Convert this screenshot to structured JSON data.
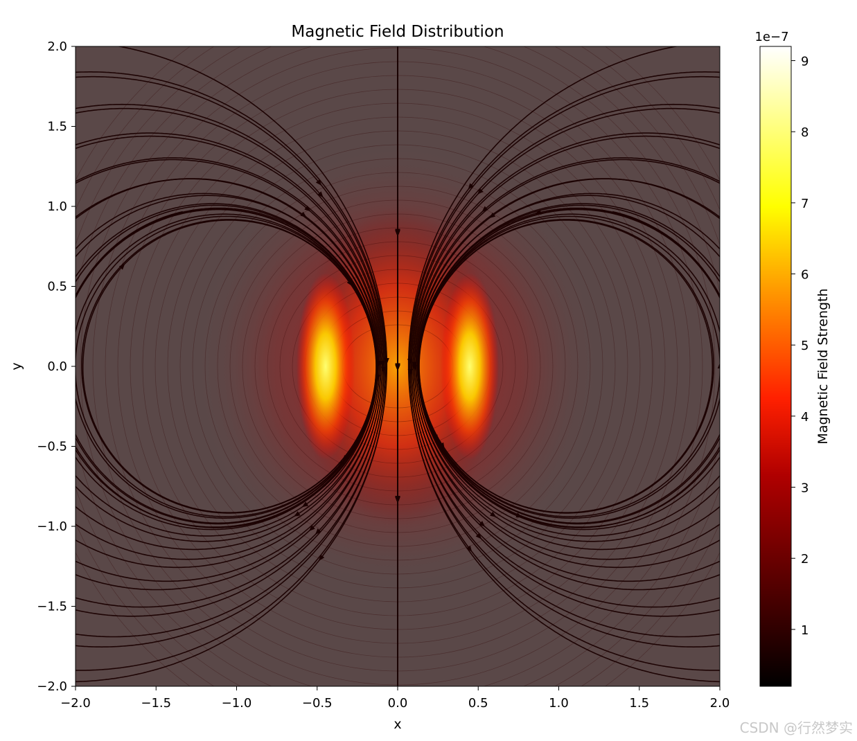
{
  "chart_data": {
    "type": "heatmap",
    "subtype": "streamplot",
    "title": "Magnetic Field Distribution",
    "xlabel": "x",
    "ylabel": "y",
    "xlim": [
      -2.0,
      2.0
    ],
    "ylim": [
      -2.0,
      2.0
    ],
    "xticks": [
      "−2.0",
      "−1.5",
      "−1.0",
      "−0.5",
      "0.0",
      "0.5",
      "1.0",
      "1.5",
      "2.0"
    ],
    "xtick_values": [
      -2.0,
      -1.5,
      -1.0,
      -0.5,
      0.0,
      0.5,
      1.0,
      1.5,
      2.0
    ],
    "yticks": [
      "2.0",
      "1.5",
      "1.0",
      "0.5",
      "0.0",
      "−0.5",
      "−1.0",
      "−1.5",
      "−2.0"
    ],
    "ytick_values": [
      2.0,
      1.5,
      1.0,
      0.5,
      0.0,
      -0.5,
      -1.0,
      -1.5,
      -2.0
    ],
    "grid": false,
    "colormap": "hot",
    "colorbar": {
      "label": "Magnetic Field Strength",
      "offset_text": "1e−7",
      "min": 0.2,
      "max": 9.2,
      "ticks": [
        "1",
        "2",
        "3",
        "4",
        "5",
        "6",
        "7",
        "8",
        "9"
      ],
      "tick_values": [
        1,
        2,
        3,
        4,
        5,
        6,
        7,
        8,
        9
      ],
      "colors": [
        "#000000",
        "#a00000",
        "#ff2000",
        "#ff9a00",
        "#ffff00",
        "#ffffff"
      ]
    },
    "sources": [
      {
        "x": -0.5,
        "y_from": -0.5,
        "y_to": 0.5
      },
      {
        "x": 0.5,
        "y_from": -0.5,
        "y_to": 0.5
      }
    ],
    "streamline_color": "#1a0000"
  },
  "watermark": "CSDN @行然梦实"
}
